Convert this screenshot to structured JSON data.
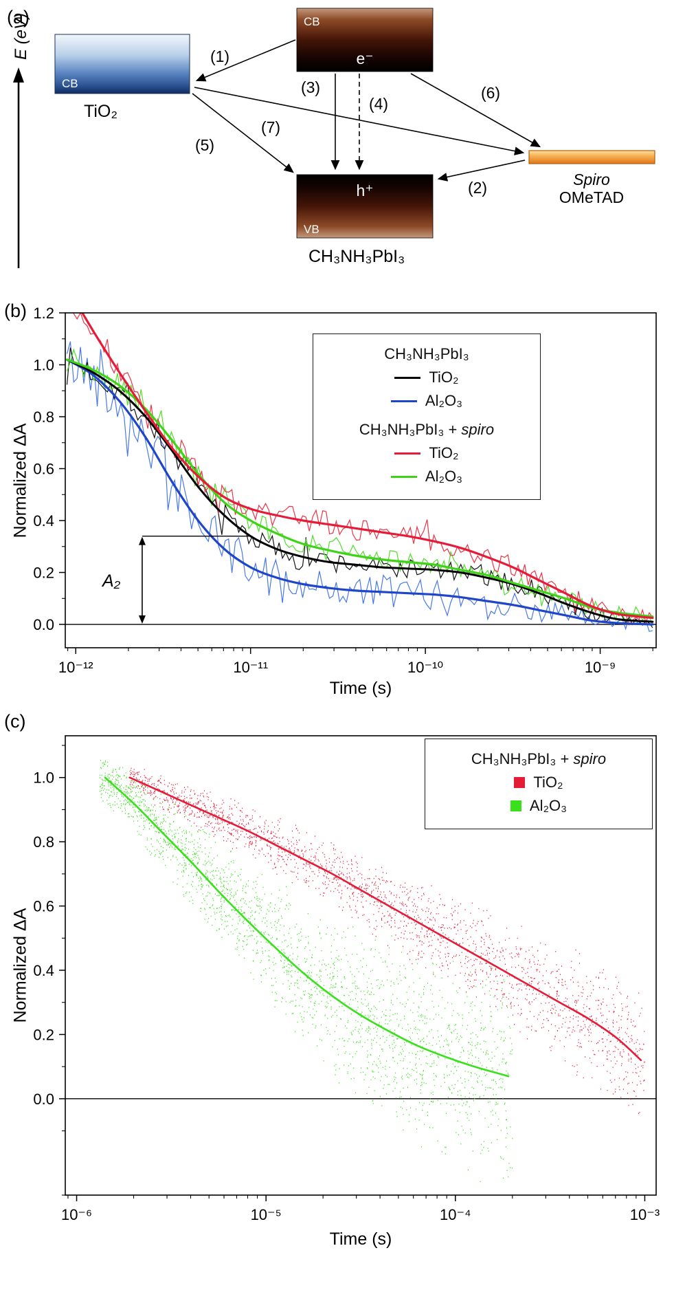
{
  "panel_a": {
    "label": "(a)",
    "energy_axis_label": "E (eV)",
    "tio2": {
      "band": "CB",
      "material": "TiO₂"
    },
    "perovskite": {
      "cb_band": "CB",
      "electron": "e⁻",
      "hole": "h⁺",
      "vb_band": "VB",
      "material": "CH₃NH₃PbI₃"
    },
    "spiro": {
      "name_line1": "Spiro",
      "name_line2": "OMeTAD"
    },
    "processes": {
      "p1": "(1)",
      "p2": "(2)",
      "p3": "(3)",
      "p4": "(4)",
      "p5": "(5)",
      "p6": "(6)",
      "p7": "(7)"
    },
    "colors": {
      "tio2_box": "#5c86c2",
      "band_dark": "#000000",
      "band_brown": "#8d4a28",
      "spiro_bar": "#ee8f28"
    }
  },
  "panel_b": {
    "label": "(b)",
    "legend": {
      "group1_title": "CH₃NH₃PbI₃",
      "group2_title_prefix": "CH₃NH₃PbI₃ + ",
      "group2_title_italic": "spiro",
      "tio2_label": "TiO₂",
      "al2o3_label": "Al₂O₃"
    }
  },
  "panel_c": {
    "label": "(c)",
    "legend": {
      "title_prefix": "CH₃NH₃PbI₃ + ",
      "title_italic": "spiro",
      "tio2_label": "TiO₂",
      "al2o3_label": "Al₂O₃"
    }
  },
  "chart_data": [
    {
      "type": "line",
      "panel": "b",
      "xlabel": "Time (s)",
      "ylabel": "Normalized ΔA",
      "xscale": "log",
      "xlim_log10": [
        -12.06,
        -8.68
      ],
      "ylim": [
        -0.09,
        1.2
      ],
      "yticks": [
        0.0,
        0.2,
        0.4,
        0.6,
        0.8,
        1.0,
        1.2
      ],
      "xticks_log10": [
        -12,
        -11,
        -10,
        -9
      ],
      "xtick_labels": [
        "10⁻¹²",
        "10⁻¹¹",
        "10⁻¹⁰",
        "10⁻⁹"
      ],
      "zero_line": true,
      "grid": false,
      "legend_position": "top-right",
      "series": [
        {
          "name": "CH₃NH₃PbI₃ Al₂O₃",
          "color": "#1f46c8",
          "noise_color": "#4878e8",
          "seed": 42,
          "noise_n": 175,
          "noise_amp": [
            0.11,
            0.03
          ],
          "fit_width": 3.2,
          "x_log10": [
            -12.05,
            -11.9,
            -11.75,
            -11.6,
            -11.45,
            -11.3,
            -11.15,
            -11.0,
            -10.85,
            -10.7,
            -10.55,
            -10.4,
            -10.25,
            -10.1,
            -9.95,
            -9.8,
            -9.65,
            -9.5,
            -9.35,
            -9.2,
            -9.05,
            -8.9,
            -8.7
          ],
          "y": [
            1.02,
            0.96,
            0.86,
            0.72,
            0.55,
            0.4,
            0.29,
            0.22,
            0.18,
            0.155,
            0.14,
            0.13,
            0.125,
            0.12,
            0.115,
            0.105,
            0.09,
            0.075,
            0.055,
            0.035,
            0.015,
            0.005,
            0.0
          ]
        },
        {
          "name": "CH₃NH₃PbI₃ TiO₂",
          "color": "#000000",
          "noise_color": "#111111",
          "seed": 7,
          "noise_n": 175,
          "noise_amp": [
            0.055,
            0.03
          ],
          "fit_width": 3.0,
          "x_log10": [
            -12.05,
            -11.9,
            -11.75,
            -11.6,
            -11.45,
            -11.3,
            -11.15,
            -11.0,
            -10.85,
            -10.7,
            -10.55,
            -10.4,
            -10.25,
            -10.1,
            -9.95,
            -9.8,
            -9.65,
            -9.5,
            -9.35,
            -9.2,
            -9.05,
            -8.9,
            -8.7
          ],
          "y": [
            1.02,
            0.97,
            0.9,
            0.8,
            0.67,
            0.53,
            0.42,
            0.34,
            0.29,
            0.26,
            0.24,
            0.23,
            0.22,
            0.215,
            0.21,
            0.2,
            0.18,
            0.155,
            0.12,
            0.08,
            0.045,
            0.02,
            0.01
          ]
        },
        {
          "name": "CH₃NH₃PbI₃ + spiro Al₂O₃",
          "color": "#3fd318",
          "noise_color": "#52dd2a",
          "seed": 19,
          "noise_n": 175,
          "noise_amp": [
            0.05,
            0.03
          ],
          "fit_width": 3.2,
          "x_log10": [
            -12.05,
            -11.9,
            -11.75,
            -11.6,
            -11.45,
            -11.3,
            -11.15,
            -11.0,
            -10.85,
            -10.7,
            -10.55,
            -10.4,
            -10.25,
            -10.1,
            -9.95,
            -9.8,
            -9.65,
            -9.5,
            -9.35,
            -9.2,
            -9.05,
            -8.9,
            -8.7
          ],
          "y": [
            1.02,
            0.98,
            0.92,
            0.83,
            0.71,
            0.58,
            0.47,
            0.4,
            0.35,
            0.31,
            0.285,
            0.265,
            0.25,
            0.24,
            0.23,
            0.21,
            0.19,
            0.16,
            0.13,
            0.1,
            0.065,
            0.045,
            0.03
          ]
        },
        {
          "name": "CH₃NH₃PbI₃ + spiro TiO₂",
          "color": "#e41c38",
          "noise_color": "#ea3448",
          "seed": 99,
          "noise_n": 175,
          "noise_amp": [
            0.06,
            0.035
          ],
          "fit_width": 3.2,
          "x_log10": [
            -12.05,
            -11.9,
            -11.75,
            -11.6,
            -11.45,
            -11.3,
            -11.15,
            -11.0,
            -10.85,
            -10.7,
            -10.55,
            -10.4,
            -10.25,
            -10.1,
            -9.95,
            -9.8,
            -9.65,
            -9.5,
            -9.35,
            -9.2,
            -9.05,
            -8.9,
            -8.7
          ],
          "y": [
            1.3,
            1.13,
            0.97,
            0.82,
            0.68,
            0.57,
            0.49,
            0.445,
            0.42,
            0.4,
            0.385,
            0.37,
            0.355,
            0.34,
            0.32,
            0.295,
            0.26,
            0.22,
            0.17,
            0.12,
            0.07,
            0.04,
            0.025
          ]
        }
      ],
      "annotation": {
        "label": "A₂",
        "x_log10": -11.62,
        "y_top": 0.34,
        "y_bottom": 0.0,
        "hline_x2_log10": -11.0
      }
    },
    {
      "type": "scatter",
      "panel": "c",
      "xlabel": "Time (s)",
      "ylabel": "Normalized ΔA",
      "xscale": "log",
      "xlim_log10": [
        -6.06,
        -2.94
      ],
      "ylim": [
        -0.3,
        1.13
      ],
      "yticks": [
        0.0,
        0.2,
        0.4,
        0.6,
        0.8,
        1.0
      ],
      "xticks_log10": [
        -6,
        -5,
        -4,
        -3
      ],
      "xtick_labels": [
        "10⁻⁶",
        "10⁻⁵",
        "10⁻⁴",
        "10⁻³"
      ],
      "zero_line": true,
      "grid": false,
      "legend_position": "top-right",
      "series": [
        {
          "name": "CH₃NH₃PbI₃ + spiro Al₂O₃",
          "color": "#3ae01c",
          "seed": 5,
          "n_dots": 2300,
          "dot_x_log10": [
            -5.88,
            -3.7
          ],
          "dot_amp": [
            0.05,
            0.27
          ],
          "fit_width": 2.6,
          "x_log10": [
            -5.85,
            -5.7,
            -5.55,
            -5.4,
            -5.25,
            -5.1,
            -4.95,
            -4.8,
            -4.65,
            -4.5,
            -4.35,
            -4.2,
            -4.05,
            -3.9,
            -3.78,
            -3.72
          ],
          "y": [
            1.0,
            0.92,
            0.83,
            0.74,
            0.645,
            0.555,
            0.47,
            0.39,
            0.32,
            0.26,
            0.21,
            0.165,
            0.13,
            0.1,
            0.08,
            0.07
          ]
        },
        {
          "name": "CH₃NH₃PbI₃ + spiro TiO₂",
          "color": "#e41c38",
          "seed": 13,
          "n_dots": 2100,
          "dot_x_log10": [
            -5.72,
            -3.0
          ],
          "dot_amp": [
            0.03,
            0.15
          ],
          "fit_width": 2.6,
          "x_log10": [
            -5.72,
            -5.55,
            -5.4,
            -5.25,
            -5.1,
            -4.95,
            -4.8,
            -4.65,
            -4.5,
            -4.35,
            -4.2,
            -4.05,
            -3.9,
            -3.75,
            -3.6,
            -3.45,
            -3.3,
            -3.15,
            -3.02
          ],
          "y": [
            1.0,
            0.955,
            0.915,
            0.875,
            0.835,
            0.79,
            0.745,
            0.7,
            0.65,
            0.6,
            0.55,
            0.5,
            0.45,
            0.4,
            0.35,
            0.3,
            0.25,
            0.19,
            0.12
          ]
        }
      ]
    }
  ]
}
